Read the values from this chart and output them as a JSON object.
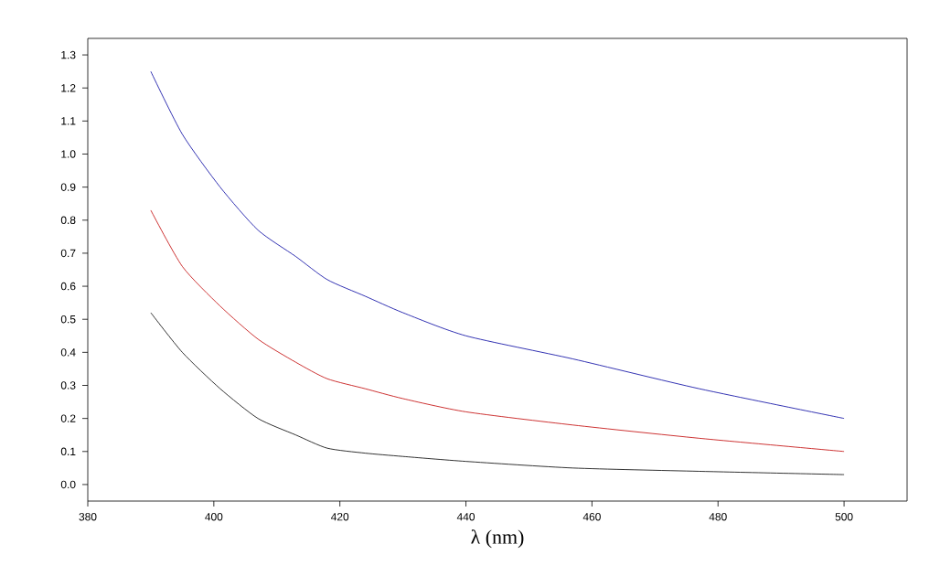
{
  "chart_data": {
    "type": "line",
    "xlabel": "λ (nm)",
    "x": [
      390,
      395,
      401,
      407,
      413,
      418,
      424,
      430,
      440,
      457,
      477,
      500
    ],
    "series": [
      {
        "color": "#0000a0",
        "values": [
          1.25,
          1.06,
          0.9,
          0.77,
          0.69,
          0.62,
          0.57,
          0.52,
          0.45,
          0.38,
          0.29,
          0.2
        ]
      },
      {
        "color": "#c00000",
        "values": [
          0.83,
          0.66,
          0.54,
          0.44,
          0.37,
          0.32,
          0.29,
          0.26,
          0.22,
          0.18,
          0.14,
          0.1
        ]
      },
      {
        "color": "#000000",
        "values": [
          0.52,
          0.4,
          0.29,
          0.2,
          0.15,
          0.11,
          0.095,
          0.085,
          0.07,
          0.05,
          0.04,
          0.03
        ]
      }
    ],
    "xlim": [
      380,
      510
    ],
    "ylim": [
      -0.05,
      1.35
    ],
    "xticks": [
      380,
      400,
      420,
      440,
      460,
      480,
      500
    ],
    "yticks": [
      {
        "value": 0,
        "label": "0.0"
      },
      0.1,
      0.2,
      0.3,
      0.4,
      0.5,
      0.6,
      0.7,
      0.8,
      0.9,
      {
        "value": 1,
        "label": "1.0"
      },
      1.1,
      1.2,
      1.3
    ],
    "grid": false,
    "marker": "none",
    "line_style": "solid"
  }
}
